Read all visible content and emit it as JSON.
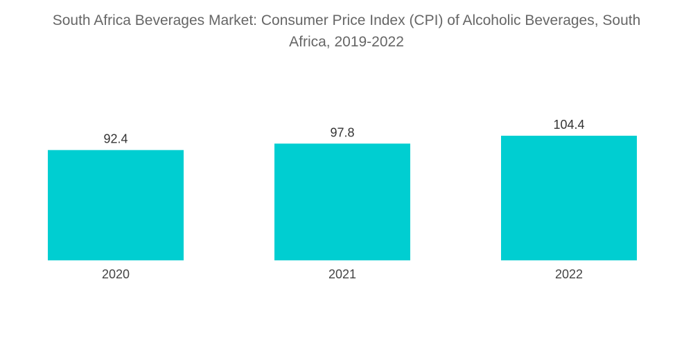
{
  "chart_data": {
    "type": "bar",
    "title_lines": [
      "South Africa Beverages Market: Consumer Price Index (CPI) of Alcoholic Beverages, South",
      "Africa, 2019-2022"
    ],
    "categories": [
      "2020",
      "2021",
      "2022"
    ],
    "values": [
      92.4,
      97.8,
      104.4
    ],
    "data_labels": [
      "92.4",
      "97.8",
      "104.4"
    ],
    "xlabel": "",
    "ylabel": "",
    "ylim": [
      0,
      104.4
    ],
    "grid": false,
    "legend": "none",
    "bar_color": "#00CED1"
  }
}
